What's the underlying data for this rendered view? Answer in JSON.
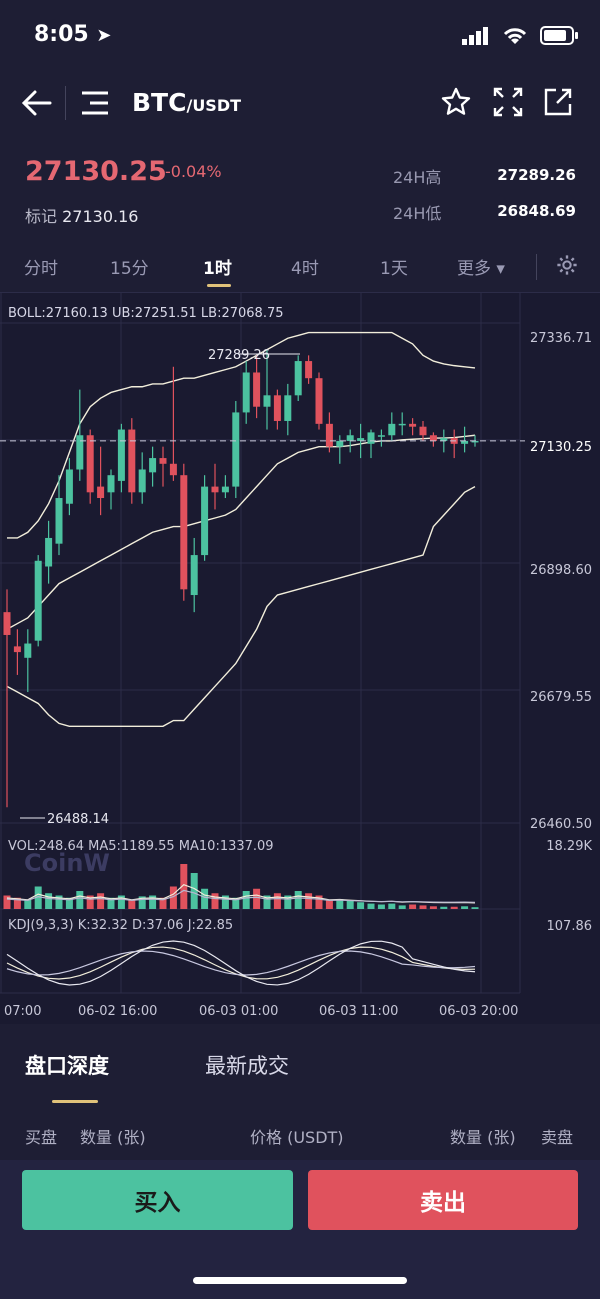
{
  "status": {
    "time": "8:05"
  },
  "header": {
    "pair_main": "BTC",
    "pair_sub": "/USDT"
  },
  "price": {
    "last": "27130.25",
    "change": "-0.04%",
    "mark_label": "标记",
    "mark_value": "27130.16",
    "high_label": "24H高",
    "high_value": "27289.26",
    "low_label": "24H低",
    "low_value": "26848.69"
  },
  "timeframes": [
    "分时",
    "15分",
    "1时",
    "4时",
    "1天",
    "更多 ▾"
  ],
  "active_timeframe": "1时",
  "chart": {
    "boll_text": "BOLL:27160.13   UB:27251.51   LB:27068.75",
    "vol_text": "VOL:248.64   MA5:1189.55   MA10:1337.09",
    "kdj_text": "KDJ(9,3,3)   K:32.32   D:37.06   J:22.85",
    "watermark": "CoinW",
    "price_axis": [
      "27336.71",
      "27130.25",
      "26898.60",
      "26679.55",
      "26460.50"
    ],
    "vol_axis": "18.29K",
    "kdj_axis": "107.86",
    "high_mark": "27289.26",
    "low_mark": "26488.14",
    "time_axis": [
      "07:00",
      "06-02 16:00",
      "06-03 01:00",
      "06-03 11:00",
      "06-03 20:00"
    ]
  },
  "chart_data": {
    "type": "candlestick",
    "price_range": [
      26460.5,
      27336.71
    ],
    "candles": [
      {
        "o": 26830,
        "h": 26870,
        "l": 26488,
        "c": 26790
      },
      {
        "o": 26770,
        "h": 26800,
        "l": 26720,
        "c": 26760
      },
      {
        "o": 26750,
        "h": 26800,
        "l": 26690,
        "c": 26775
      },
      {
        "o": 26780,
        "h": 26930,
        "l": 26770,
        "c": 26920
      },
      {
        "o": 26910,
        "h": 26990,
        "l": 26880,
        "c": 26960
      },
      {
        "o": 26950,
        "h": 27070,
        "l": 26930,
        "c": 27030
      },
      {
        "o": 27020,
        "h": 27100,
        "l": 27000,
        "c": 27080
      },
      {
        "o": 27080,
        "h": 27220,
        "l": 27060,
        "c": 27140
      },
      {
        "o": 27140,
        "h": 27150,
        "l": 27020,
        "c": 27040
      },
      {
        "o": 27050,
        "h": 27120,
        "l": 27000,
        "c": 27030
      },
      {
        "o": 27040,
        "h": 27080,
        "l": 27010,
        "c": 27070
      },
      {
        "o": 27060,
        "h": 27160,
        "l": 27040,
        "c": 27150
      },
      {
        "o": 27150,
        "h": 27170,
        "l": 27020,
        "c": 27040
      },
      {
        "o": 27040,
        "h": 27110,
        "l": 27020,
        "c": 27080
      },
      {
        "o": 27075,
        "h": 27120,
        "l": 27050,
        "c": 27100
      },
      {
        "o": 27100,
        "h": 27120,
        "l": 27050,
        "c": 27090
      },
      {
        "o": 27090,
        "h": 27260,
        "l": 27060,
        "c": 27070
      },
      {
        "o": 27070,
        "h": 27090,
        "l": 26850,
        "c": 26870
      },
      {
        "o": 26860,
        "h": 26960,
        "l": 26830,
        "c": 26930
      },
      {
        "o": 26930,
        "h": 27070,
        "l": 26920,
        "c": 27050
      },
      {
        "o": 27050,
        "h": 27090,
        "l": 27010,
        "c": 27040
      },
      {
        "o": 27040,
        "h": 27070,
        "l": 27030,
        "c": 27050
      },
      {
        "o": 27050,
        "h": 27200,
        "l": 27030,
        "c": 27180
      },
      {
        "o": 27180,
        "h": 27270,
        "l": 27160,
        "c": 27250
      },
      {
        "o": 27250,
        "h": 27280,
        "l": 27170,
        "c": 27190
      },
      {
        "o": 27190,
        "h": 27289,
        "l": 27150,
        "c": 27210
      },
      {
        "o": 27210,
        "h": 27220,
        "l": 27150,
        "c": 27165
      },
      {
        "o": 27165,
        "h": 27230,
        "l": 27140,
        "c": 27210
      },
      {
        "o": 27210,
        "h": 27280,
        "l": 27200,
        "c": 27270
      },
      {
        "o": 27270,
        "h": 27280,
        "l": 27230,
        "c": 27240
      },
      {
        "o": 27240,
        "h": 27250,
        "l": 27150,
        "c": 27160
      },
      {
        "o": 27160,
        "h": 27180,
        "l": 27110,
        "c": 27120
      },
      {
        "o": 27120,
        "h": 27140,
        "l": 27090,
        "c": 27130
      },
      {
        "o": 27130,
        "h": 27150,
        "l": 27110,
        "c": 27140
      },
      {
        "o": 27130,
        "h": 27160,
        "l": 27100,
        "c": 27135
      },
      {
        "o": 27125,
        "h": 27150,
        "l": 27100,
        "c": 27145
      },
      {
        "o": 27140,
        "h": 27150,
        "l": 27120,
        "c": 27140
      },
      {
        "o": 27140,
        "h": 27180,
        "l": 27130,
        "c": 27160
      },
      {
        "o": 27160,
        "h": 27180,
        "l": 27140,
        "c": 27160
      },
      {
        "o": 27160,
        "h": 27170,
        "l": 27140,
        "c": 27155
      },
      {
        "o": 27155,
        "h": 27165,
        "l": 27130,
        "c": 27140
      },
      {
        "o": 27140,
        "h": 27145,
        "l": 27120,
        "c": 27130
      },
      {
        "o": 27130,
        "h": 27150,
        "l": 27110,
        "c": 27135
      },
      {
        "o": 27135,
        "h": 27150,
        "l": 27100,
        "c": 27125
      },
      {
        "o": 27125,
        "h": 27155,
        "l": 27110,
        "c": 27130
      },
      {
        "o": 27130,
        "h": 27140,
        "l": 27120,
        "c": 27130
      }
    ],
    "boll_upper": [
      26960,
      26960,
      26970,
      26990,
      27020,
      27060,
      27110,
      27160,
      27190,
      27205,
      27215,
      27220,
      27225,
      27225,
      27230,
      27230,
      27235,
      27240,
      27240,
      27245,
      27250,
      27255,
      27260,
      27270,
      27280,
      27290,
      27300,
      27310,
      27315,
      27320,
      27320,
      27320,
      27320,
      27320,
      27320,
      27320,
      27320,
      27320,
      27310,
      27300,
      27280,
      27270,
      27265,
      27262,
      27260,
      27258
    ],
    "boll_mid": [
      26800,
      26810,
      26820,
      26840,
      26860,
      26880,
      26890,
      26900,
      26910,
      26920,
      26930,
      26940,
      26950,
      26960,
      26970,
      26975,
      26980,
      26980,
      26985,
      26990,
      26995,
      27000,
      27010,
      27030,
      27050,
      27070,
      27090,
      27100,
      27110,
      27115,
      27120,
      27120,
      27120,
      27122,
      27125,
      27128,
      27130,
      27130,
      27132,
      27133,
      27134,
      27135,
      27135,
      27136,
      27138,
      27140
    ],
    "boll_lower": [
      26700,
      26690,
      26680,
      26670,
      26650,
      26635,
      26630,
      26630,
      26630,
      26630,
      26630,
      26630,
      26630,
      26630,
      26630,
      26630,
      26640,
      26640,
      26660,
      26680,
      26700,
      26720,
      26740,
      26770,
      26800,
      26840,
      26860,
      26865,
      26870,
      26875,
      26880,
      26885,
      26890,
      26895,
      26900,
      26905,
      26910,
      26915,
      26920,
      26925,
      26930,
      26980,
      27000,
      27020,
      27040,
      27050
    ],
    "volume": [
      0.3,
      0.25,
      0.2,
      0.5,
      0.35,
      0.3,
      0.25,
      0.4,
      0.3,
      0.35,
      0.25,
      0.3,
      0.2,
      0.28,
      0.3,
      0.25,
      0.5,
      1.0,
      0.8,
      0.45,
      0.35,
      0.3,
      0.25,
      0.4,
      0.45,
      0.3,
      0.35,
      0.3,
      0.4,
      0.35,
      0.3,
      0.2,
      0.22,
      0.18,
      0.15,
      0.12,
      0.1,
      0.12,
      0.08,
      0.1,
      0.08,
      0.06,
      0.05,
      0.05,
      0.06,
      0.04
    ]
  }
}
